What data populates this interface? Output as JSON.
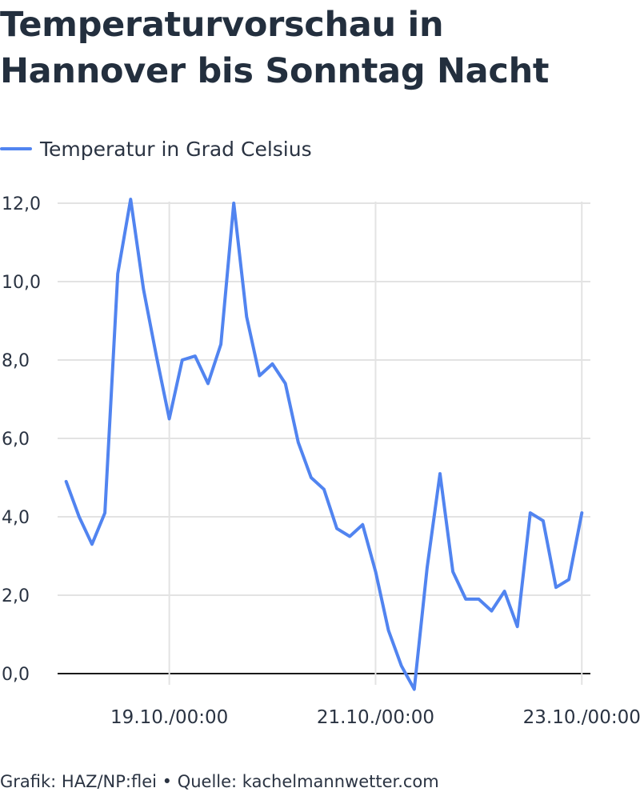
{
  "title": "Temperaturvorschau in Hannover bis Sonntag Nacht",
  "source": "Grafik: HAZ/NP:flei • Quelle: kachelmannwetter.com",
  "colors": {
    "line": "#5184f0",
    "grid": "#e3e3e3",
    "zero_axis": "#1a1a1a",
    "text": "#2a3342"
  },
  "chart_data": {
    "type": "line",
    "xlabel": "",
    "ylabel": "",
    "ylim": [
      0,
      12
    ],
    "yticks": [
      {
        "value": 0,
        "label": "0,0"
      },
      {
        "value": 2,
        "label": "2,0"
      },
      {
        "value": 4,
        "label": "4,0"
      },
      {
        "value": 6,
        "label": "6,0"
      },
      {
        "value": 8,
        "label": "8,0"
      },
      {
        "value": 10,
        "label": "10,0"
      },
      {
        "value": 12,
        "label": "12,0"
      }
    ],
    "xticks": [
      {
        "label": "19.10./00:00",
        "x": "2025-10-19T00:00"
      },
      {
        "label": "21.10./00:00",
        "x": "2025-10-21T00:00"
      },
      {
        "label": "23.10./00:00",
        "x": "2025-10-23T00:00"
      }
    ],
    "xlim": [
      "2025-10-17T22:00",
      "2025-10-23T02:00"
    ],
    "x_step_hours": 3,
    "grid": true,
    "legend_position": "top-left",
    "series": [
      {
        "name": "Temperatur in Grad Celsius",
        "x_start": "2025-10-18T00:00",
        "values": [
          4.9,
          4.0,
          3.3,
          4.1,
          10.2,
          12.1,
          9.8,
          8.1,
          6.5,
          8.0,
          8.1,
          7.4,
          8.4,
          12.0,
          9.1,
          7.6,
          7.9,
          7.4,
          5.9,
          5.0,
          4.7,
          3.7,
          3.5,
          3.8,
          2.6,
          1.1,
          0.2,
          -0.4,
          2.7,
          5.1,
          2.6,
          1.9,
          1.9,
          1.6,
          2.1,
          1.2,
          4.1,
          3.9,
          2.2,
          2.4,
          4.1
        ]
      }
    ]
  }
}
